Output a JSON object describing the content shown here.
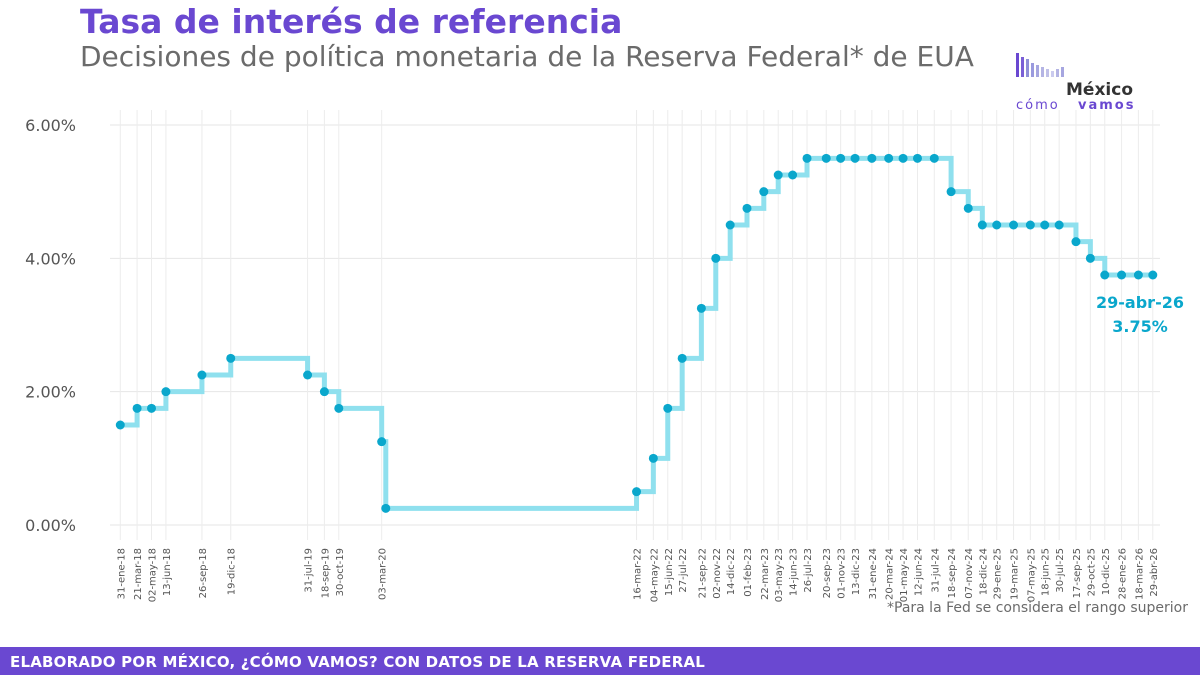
{
  "header": {
    "title": "Tasa de interés de referencia",
    "subtitle": "Decisiones de política monetaria de la Reserva Federal* de EUA"
  },
  "logo": {
    "top_text": "México",
    "bottom_text_1": "cómo",
    "bottom_text_2": "vamos",
    "colors": [
      "#6a48d1",
      "#8f8fd8",
      "#b4b4e4"
    ]
  },
  "footnote": "*Para la Fed se considera el rango superior",
  "footer": {
    "text": "ELABORADO POR MÉXICO, ¿CÓMO VAMOS? CON DATOS DE LA RESERVA FEDERAL"
  },
  "chart_data": {
    "type": "line",
    "step": true,
    "title": "Tasa de interés de referencia",
    "subtitle": "Decisiones de política monetaria de la Reserva Federal* de EUA",
    "ylim": [
      0,
      6
    ],
    "yticks": [
      "0.00%",
      "2.00%",
      "4.00%",
      "6.00%"
    ],
    "ytick_values": [
      0,
      2,
      4,
      6
    ],
    "grid": true,
    "line_color": "#8fe0ee",
    "marker_color": "#0aa7cc",
    "annotation": {
      "date": "29-abr-26",
      "value": "3.75%",
      "color": "#0aa7cc"
    },
    "points": [
      {
        "date": "31-ene-18",
        "value": 1.5
      },
      {
        "date": "21-mar-18",
        "value": 1.75
      },
      {
        "date": "02-may-18",
        "value": 1.75
      },
      {
        "date": "13-jun-18",
        "value": 2.0
      },
      {
        "date": "26-sep-18",
        "value": 2.25
      },
      {
        "date": "19-dic-18",
        "value": 2.5
      },
      {
        "date": "31-jul-19",
        "value": 2.25
      },
      {
        "date": "18-sep-19",
        "value": 2.0
      },
      {
        "date": "30-oct-19",
        "value": 1.75
      },
      {
        "date": "03-mar-20",
        "value": 1.25
      },
      {
        "date": "15-mar-20",
        "value": 0.25
      },
      {
        "date": "16-mar-22",
        "value": 0.5
      },
      {
        "date": "04-may-22",
        "value": 1.0
      },
      {
        "date": "15-jun-22",
        "value": 1.75
      },
      {
        "date": "27-jul-22",
        "value": 2.5
      },
      {
        "date": "21-sep-22",
        "value": 3.25
      },
      {
        "date": "02-nov-22",
        "value": 4.0
      },
      {
        "date": "14-dic-22",
        "value": 4.5
      },
      {
        "date": "01-feb-23",
        "value": 4.75
      },
      {
        "date": "22-mar-23",
        "value": 5.0
      },
      {
        "date": "03-may-23",
        "value": 5.25
      },
      {
        "date": "14-jun-23",
        "value": 5.25
      },
      {
        "date": "26-jul-23",
        "value": 5.5
      },
      {
        "date": "20-sep-23",
        "value": 5.5
      },
      {
        "date": "01-nov-23",
        "value": 5.5
      },
      {
        "date": "13-dic-23",
        "value": 5.5
      },
      {
        "date": "31-ene-24",
        "value": 5.5
      },
      {
        "date": "20-mar-24",
        "value": 5.5
      },
      {
        "date": "01-may-24",
        "value": 5.5
      },
      {
        "date": "12-jun-24",
        "value": 5.5
      },
      {
        "date": "31-jul-24",
        "value": 5.5
      },
      {
        "date": "18-sep-24",
        "value": 5.0
      },
      {
        "date": "07-nov-24",
        "value": 4.75
      },
      {
        "date": "18-dic-24",
        "value": 4.5
      },
      {
        "date": "29-ene-25",
        "value": 4.5
      },
      {
        "date": "19-mar-25",
        "value": 4.5
      },
      {
        "date": "07-may-25",
        "value": 4.5
      },
      {
        "date": "18-jun-25",
        "value": 4.5
      },
      {
        "date": "30-jul-25",
        "value": 4.5
      },
      {
        "date": "17-sep-25",
        "value": 4.25
      },
      {
        "date": "29-oct-25",
        "value": 4.0
      },
      {
        "date": "10-dic-25",
        "value": 3.75
      },
      {
        "date": "28-ene-26",
        "value": 3.75
      },
      {
        "date": "18-mar-26",
        "value": 3.75
      },
      {
        "date": "29-abr-26",
        "value": 3.75
      }
    ],
    "xtick_labels": [
      "31-ene-18",
      "21-mar-18",
      "02-may-18",
      "13-jun-18",
      "26-sep-18",
      "19-dic-18",
      "31-jul-19",
      "18-sep-19",
      "30-oct-19",
      "03-mar-20",
      "16-mar-22",
      "04-may-22",
      "15-jun-22",
      "27-jul-22",
      "21-sep-22",
      "02-nov-22",
      "14-dic-22",
      "01-feb-23",
      "22-mar-23",
      "03-may-23",
      "14-jun-23",
      "26-jul-23",
      "20-sep-23",
      "01-nov-23",
      "13-dic-23",
      "31-ene-24",
      "20-mar-24",
      "01-may-24",
      "12-jun-24",
      "31-jul-24",
      "18-sep-24",
      "07-nov-24",
      "18-dic-24",
      "29-ene-25",
      "19-mar-25",
      "07-may-25",
      "18-jun-25",
      "30-jul-25",
      "17-sep-25",
      "29-oct-25",
      "10-dic-25",
      "28-ene-26",
      "18-mar-26",
      "29-abr-26"
    ]
  }
}
